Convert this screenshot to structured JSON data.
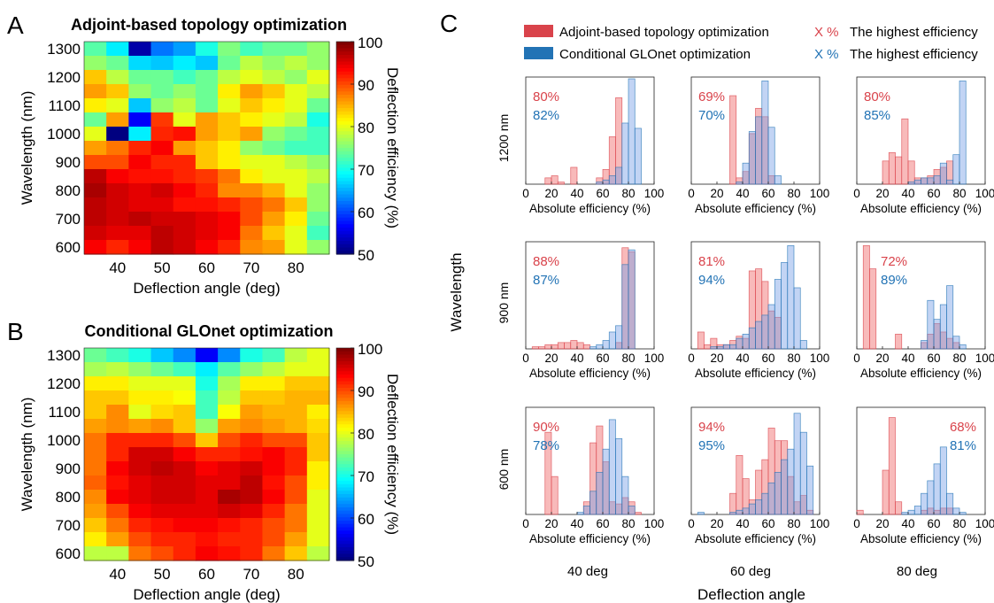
{
  "panels": {
    "A": {
      "letter": "A",
      "title": "Adjoint-based topology optimization"
    },
    "B": {
      "letter": "B",
      "title": "Conditional GLOnet optimization"
    },
    "C": {
      "letter": "C"
    }
  },
  "heatmap_axes": {
    "xlabel": "Deflection angle (deg)",
    "ylabel": "Wavelength (nm)",
    "x_ticks": [
      "40",
      "50",
      "60",
      "70",
      "80"
    ],
    "y_ticks": [
      "1300",
      "1200",
      "1100",
      "1000",
      "900",
      "800",
      "700",
      "600"
    ],
    "colorbar_label": "Deflection efficiency (%)",
    "colorbar_ticks": [
      "100",
      "90",
      "80",
      "70",
      "60",
      "50"
    ],
    "colormap": "jet"
  },
  "legend": {
    "adjoint_label": "Adjoint-based topology optimization",
    "glonet_label": "Conditional GLOnet optimization",
    "highest_marker": "X %",
    "highest_label": "The highest efficiency",
    "adjoint_color": "#d9434b",
    "glonet_color": "#2273b5"
  },
  "grid_labels": {
    "row_labels": [
      "1200 nm",
      "900 nm",
      "600 nm"
    ],
    "col_labels": [
      "40 deg",
      "60 deg",
      "80 deg"
    ],
    "y_title": "Wavelength",
    "x_title": "Deflection angle",
    "hist_xlabel": "Absolute efficiency (%)",
    "hist_xticks": [
      "0",
      "20",
      "40",
      "60",
      "80",
      "100"
    ]
  },
  "chart_data": [
    {
      "type": "heatmap",
      "panel": "A",
      "title": "Adjoint-based topology optimization",
      "xlabel": "Deflection angle (deg)",
      "ylabel": "Wavelength (nm)",
      "zlabel": "Deflection efficiency (%)",
      "zlim": [
        50,
        100
      ],
      "x": [
        35,
        40,
        45,
        50,
        55,
        60,
        65,
        70,
        75,
        80,
        85
      ],
      "y": [
        1300,
        1250,
        1200,
        1150,
        1100,
        1050,
        1000,
        950,
        900,
        850,
        800,
        750,
        700,
        650,
        600
      ],
      "values": [
        [
          73,
          68,
          52,
          62,
          64,
          70,
          75,
          72,
          74,
          74,
          76
        ],
        [
          76,
          74,
          67,
          66,
          68,
          66,
          74,
          78,
          76,
          78,
          76
        ],
        [
          84,
          78,
          74,
          74,
          72,
          74,
          78,
          80,
          78,
          76,
          80
        ],
        [
          86,
          84,
          76,
          74,
          76,
          74,
          82,
          86,
          84,
          80,
          78
        ],
        [
          82,
          80,
          66,
          76,
          78,
          74,
          80,
          84,
          82,
          80,
          74
        ],
        [
          74,
          86,
          56,
          91,
          80,
          86,
          84,
          82,
          80,
          78,
          70
        ],
        [
          80,
          50,
          68,
          92,
          93,
          86,
          84,
          86,
          76,
          74,
          72
        ],
        [
          86,
          88,
          92,
          94,
          86,
          84,
          82,
          76,
          74,
          72,
          72
        ],
        [
          90,
          90,
          94,
          92,
          92,
          84,
          82,
          80,
          80,
          78,
          76
        ],
        [
          97,
          94,
          93,
          93,
          92,
          91,
          88,
          82,
          80,
          80,
          78
        ],
        [
          98,
          96,
          95,
          96,
          94,
          92,
          87,
          87,
          85,
          80,
          76
        ],
        [
          97,
          96,
          95,
          95,
          93,
          93,
          92,
          90,
          88,
          84,
          76
        ],
        [
          97,
          96,
          97,
          96,
          96,
          95,
          94,
          90,
          86,
          82,
          74
        ],
        [
          96,
          95,
          95,
          97,
          96,
          95,
          94,
          88,
          84,
          80,
          72
        ],
        [
          94,
          92,
          94,
          97,
          96,
          94,
          92,
          87,
          86,
          80,
          76
        ]
      ]
    },
    {
      "type": "heatmap",
      "panel": "B",
      "title": "Conditional GLOnet optimization",
      "xlabel": "Deflection angle (deg)",
      "ylabel": "Wavelength (nm)",
      "zlabel": "Deflection efficiency (%)",
      "zlim": [
        50,
        100
      ],
      "x": [
        35,
        40,
        45,
        50,
        55,
        60,
        65,
        70,
        75,
        80,
        85
      ],
      "y": [
        1300,
        1250,
        1200,
        1150,
        1100,
        1050,
        1000,
        950,
        900,
        850,
        800,
        750,
        700,
        650,
        600
      ],
      "values": [
        [
          74,
          72,
          70,
          66,
          63,
          56,
          63,
          70,
          72,
          78,
          80
        ],
        [
          77,
          78,
          76,
          74,
          72,
          68,
          73,
          76,
          78,
          80,
          80
        ],
        [
          82,
          82,
          80,
          80,
          80,
          70,
          77,
          82,
          82,
          84,
          84
        ],
        [
          84,
          84,
          82,
          82,
          81,
          72,
          78,
          84,
          84,
          85,
          85
        ],
        [
          84,
          87,
          80,
          83,
          84,
          72,
          81,
          86,
          85,
          85,
          82
        ],
        [
          86,
          87,
          86,
          87,
          84,
          76,
          86,
          87,
          86,
          85,
          83
        ],
        [
          88,
          92,
          92,
          92,
          90,
          84,
          90,
          92,
          90,
          90,
          84
        ],
        [
          88,
          92,
          96,
          96,
          94,
          92,
          92,
          93,
          94,
          92,
          84
        ],
        [
          88,
          94,
          96,
          97,
          96,
          94,
          95,
          96,
          94,
          92,
          82
        ],
        [
          89,
          93,
          95,
          96,
          96,
          95,
          95,
          97,
          93,
          90,
          82
        ],
        [
          87,
          94,
          95,
          96,
          96,
          95,
          98,
          97,
          94,
          90,
          80
        ],
        [
          86,
          90,
          94,
          95,
          95,
          95,
          96,
          95,
          92,
          88,
          80
        ],
        [
          84,
          88,
          92,
          93,
          94,
          94,
          93,
          92,
          90,
          88,
          80
        ],
        [
          82,
          86,
          90,
          92,
          92,
          93,
          92,
          92,
          90,
          86,
          80
        ],
        [
          78,
          78,
          88,
          90,
          92,
          94,
          93,
          92,
          88,
          84,
          78
        ]
      ]
    },
    {
      "type": "histogram_grid",
      "panel": "C",
      "xlabel": "Absolute efficiency (%)",
      "xlim": [
        0,
        100
      ],
      "series_names": [
        "Adjoint-based topology optimization",
        "Conditional GLOnet optimization"
      ],
      "cells": [
        {
          "row": "1200 nm",
          "col": "40 deg",
          "adjoint_best": "80%",
          "glonet_best": "82%",
          "label_pos": "left",
          "adjoint": {
            "start": 15,
            "bin": 5,
            "h": [
              0.06,
              0.08,
              0.02,
              0,
              0.16,
              0,
              0,
              0,
              0.06,
              0.14,
              0.45,
              0.82,
              0
            ]
          },
          "glonet": {
            "start": 55,
            "bin": 5,
            "h": [
              0.02,
              0.04,
              0.08,
              0.16,
              0.58,
              1.0,
              0.53
            ]
          }
        },
        {
          "row": "1200 nm",
          "col": "60 deg",
          "adjoint_best": "69%",
          "glonet_best": "70%",
          "label_pos": "left",
          "adjoint": {
            "start": 30,
            "bin": 5,
            "h": [
              0.84,
              0.06,
              0.12,
              0.48,
              0.72,
              0.64,
              0.08
            ]
          },
          "glonet": {
            "start": 35,
            "bin": 5,
            "h": [
              0.02,
              0.2,
              0.5,
              0.64,
              0.98,
              0.54,
              0.08
            ]
          }
        },
        {
          "row": "1200 nm",
          "col": "80 deg",
          "adjoint_best": "80%",
          "glonet_best": "85%",
          "label_pos": "left",
          "adjoint": {
            "start": 20,
            "bin": 5,
            "h": [
              0.22,
              0.3,
              0.26,
              0.62,
              0.22,
              0.06,
              0.06,
              0.08,
              0.14,
              0.16,
              0.22
            ]
          },
          "glonet": {
            "start": 40,
            "bin": 5,
            "h": [
              0.02,
              0.04,
              0.06,
              0.06,
              0.08,
              0.2,
              0.04,
              0.28,
              0.98
            ]
          }
        },
        {
          "row": "900 nm",
          "col": "40 deg",
          "adjoint_best": "88%",
          "glonet_best": "87%",
          "label_pos": "left",
          "adjoint": {
            "start": 0,
            "bin": 5,
            "h": [
              0,
              0.02,
              0.02,
              0.04,
              0.04,
              0.06,
              0.06,
              0.08,
              0.06,
              0.04,
              0,
              0,
              0,
              0,
              0.06,
              0.96,
              0.92
            ]
          },
          "glonet": {
            "start": 50,
            "bin": 5,
            "h": [
              0.02,
              0.04,
              0.08,
              0.16,
              0.22,
              0.8,
              0.94
            ]
          }
        },
        {
          "row": "900 nm",
          "col": "60 deg",
          "adjoint_best": "81%",
          "glonet_best": "94%",
          "label_pos": "left",
          "adjoint": {
            "start": 5,
            "bin": 5,
            "h": [
              0.16,
              0.04,
              0.1,
              0.04,
              0.04,
              0.08,
              0.12,
              0.1,
              0.74,
              0.76,
              0.64,
              0.36,
              0.3
            ]
          },
          "glonet": {
            "start": 15,
            "bin": 5,
            "h": [
              0.02,
              0.02,
              0.04,
              0.04,
              0.1,
              0.14,
              0.2,
              0.26,
              0.32,
              0.42,
              0.66,
              0.82,
              0.98,
              0.58,
              0.08
            ]
          }
        },
        {
          "row": "900 nm",
          "col": "80 deg",
          "adjoint_best": "72%",
          "glonet_best": "89%",
          "label_pos": "left",
          "adjoint": {
            "start": 5,
            "bin": 5,
            "h": [
              0.98,
              0.76,
              0,
              0,
              0,
              0.14,
              0,
              0,
              0,
              0.06,
              0.14,
              0.24,
              0.16,
              0.1,
              0.06
            ]
          },
          "glonet": {
            "start": 50,
            "bin": 5,
            "h": [
              0.08,
              0.46,
              0.28,
              0.42,
              0.6,
              0.12,
              0.04
            ]
          }
        },
        {
          "row": "600 nm",
          "col": "40 deg",
          "adjoint_best": "90%",
          "glonet_best": "78%",
          "label_pos": "left",
          "adjoint": {
            "start": 15,
            "bin": 5,
            "h": [
              0.78,
              0.36,
              0,
              0,
              0,
              0,
              0.12,
              0.68,
              0.84,
              0.5,
              0.12,
              0.1,
              0.16,
              0.12,
              0.02
            ]
          },
          "glonet": {
            "start": 40,
            "bin": 5,
            "h": [
              0.02,
              0.08,
              0.22,
              0.4,
              0.62,
              0.9,
              0.72,
              0.36,
              0.08
            ]
          }
        },
        {
          "row": "600 nm",
          "col": "60 deg",
          "adjoint_best": "94%",
          "glonet_best": "95%",
          "label_pos": "left",
          "adjoint": {
            "start": 30,
            "bin": 5,
            "h": [
              0.2,
              0.56,
              0.34,
              0.14,
              0.42,
              0.52,
              0.82,
              0.7,
              0.7,
              0.36,
              0.12,
              0.18,
              0.04
            ]
          },
          "glonet": {
            "start": 0,
            "bin": 5,
            "h": [
              0,
              0.02,
              0,
              0,
              0,
              0,
              0.02,
              0.04,
              0.06,
              0.1,
              0.14,
              0.2,
              0.3,
              0.4,
              0.52,
              0.62,
              0.96,
              0.78,
              0.46
            ]
          }
        },
        {
          "row": "600 nm",
          "col": "80 deg",
          "adjoint_best": "68%",
          "glonet_best": "81%",
          "label_pos": "right",
          "adjoint": {
            "start": 0,
            "bin": 5,
            "h": [
              0.04,
              0,
              0,
              0,
              0.42,
              0.92,
              0.12,
              0,
              0,
              0,
              0.04,
              0.06,
              0.04,
              0.06,
              0.06
            ]
          },
          "glonet": {
            "start": 35,
            "bin": 5,
            "h": [
              0.02,
              0.04,
              0.08,
              0.2,
              0.32,
              0.48,
              0.64,
              0.2,
              0.06,
              0.02
            ]
          }
        }
      ]
    }
  ]
}
